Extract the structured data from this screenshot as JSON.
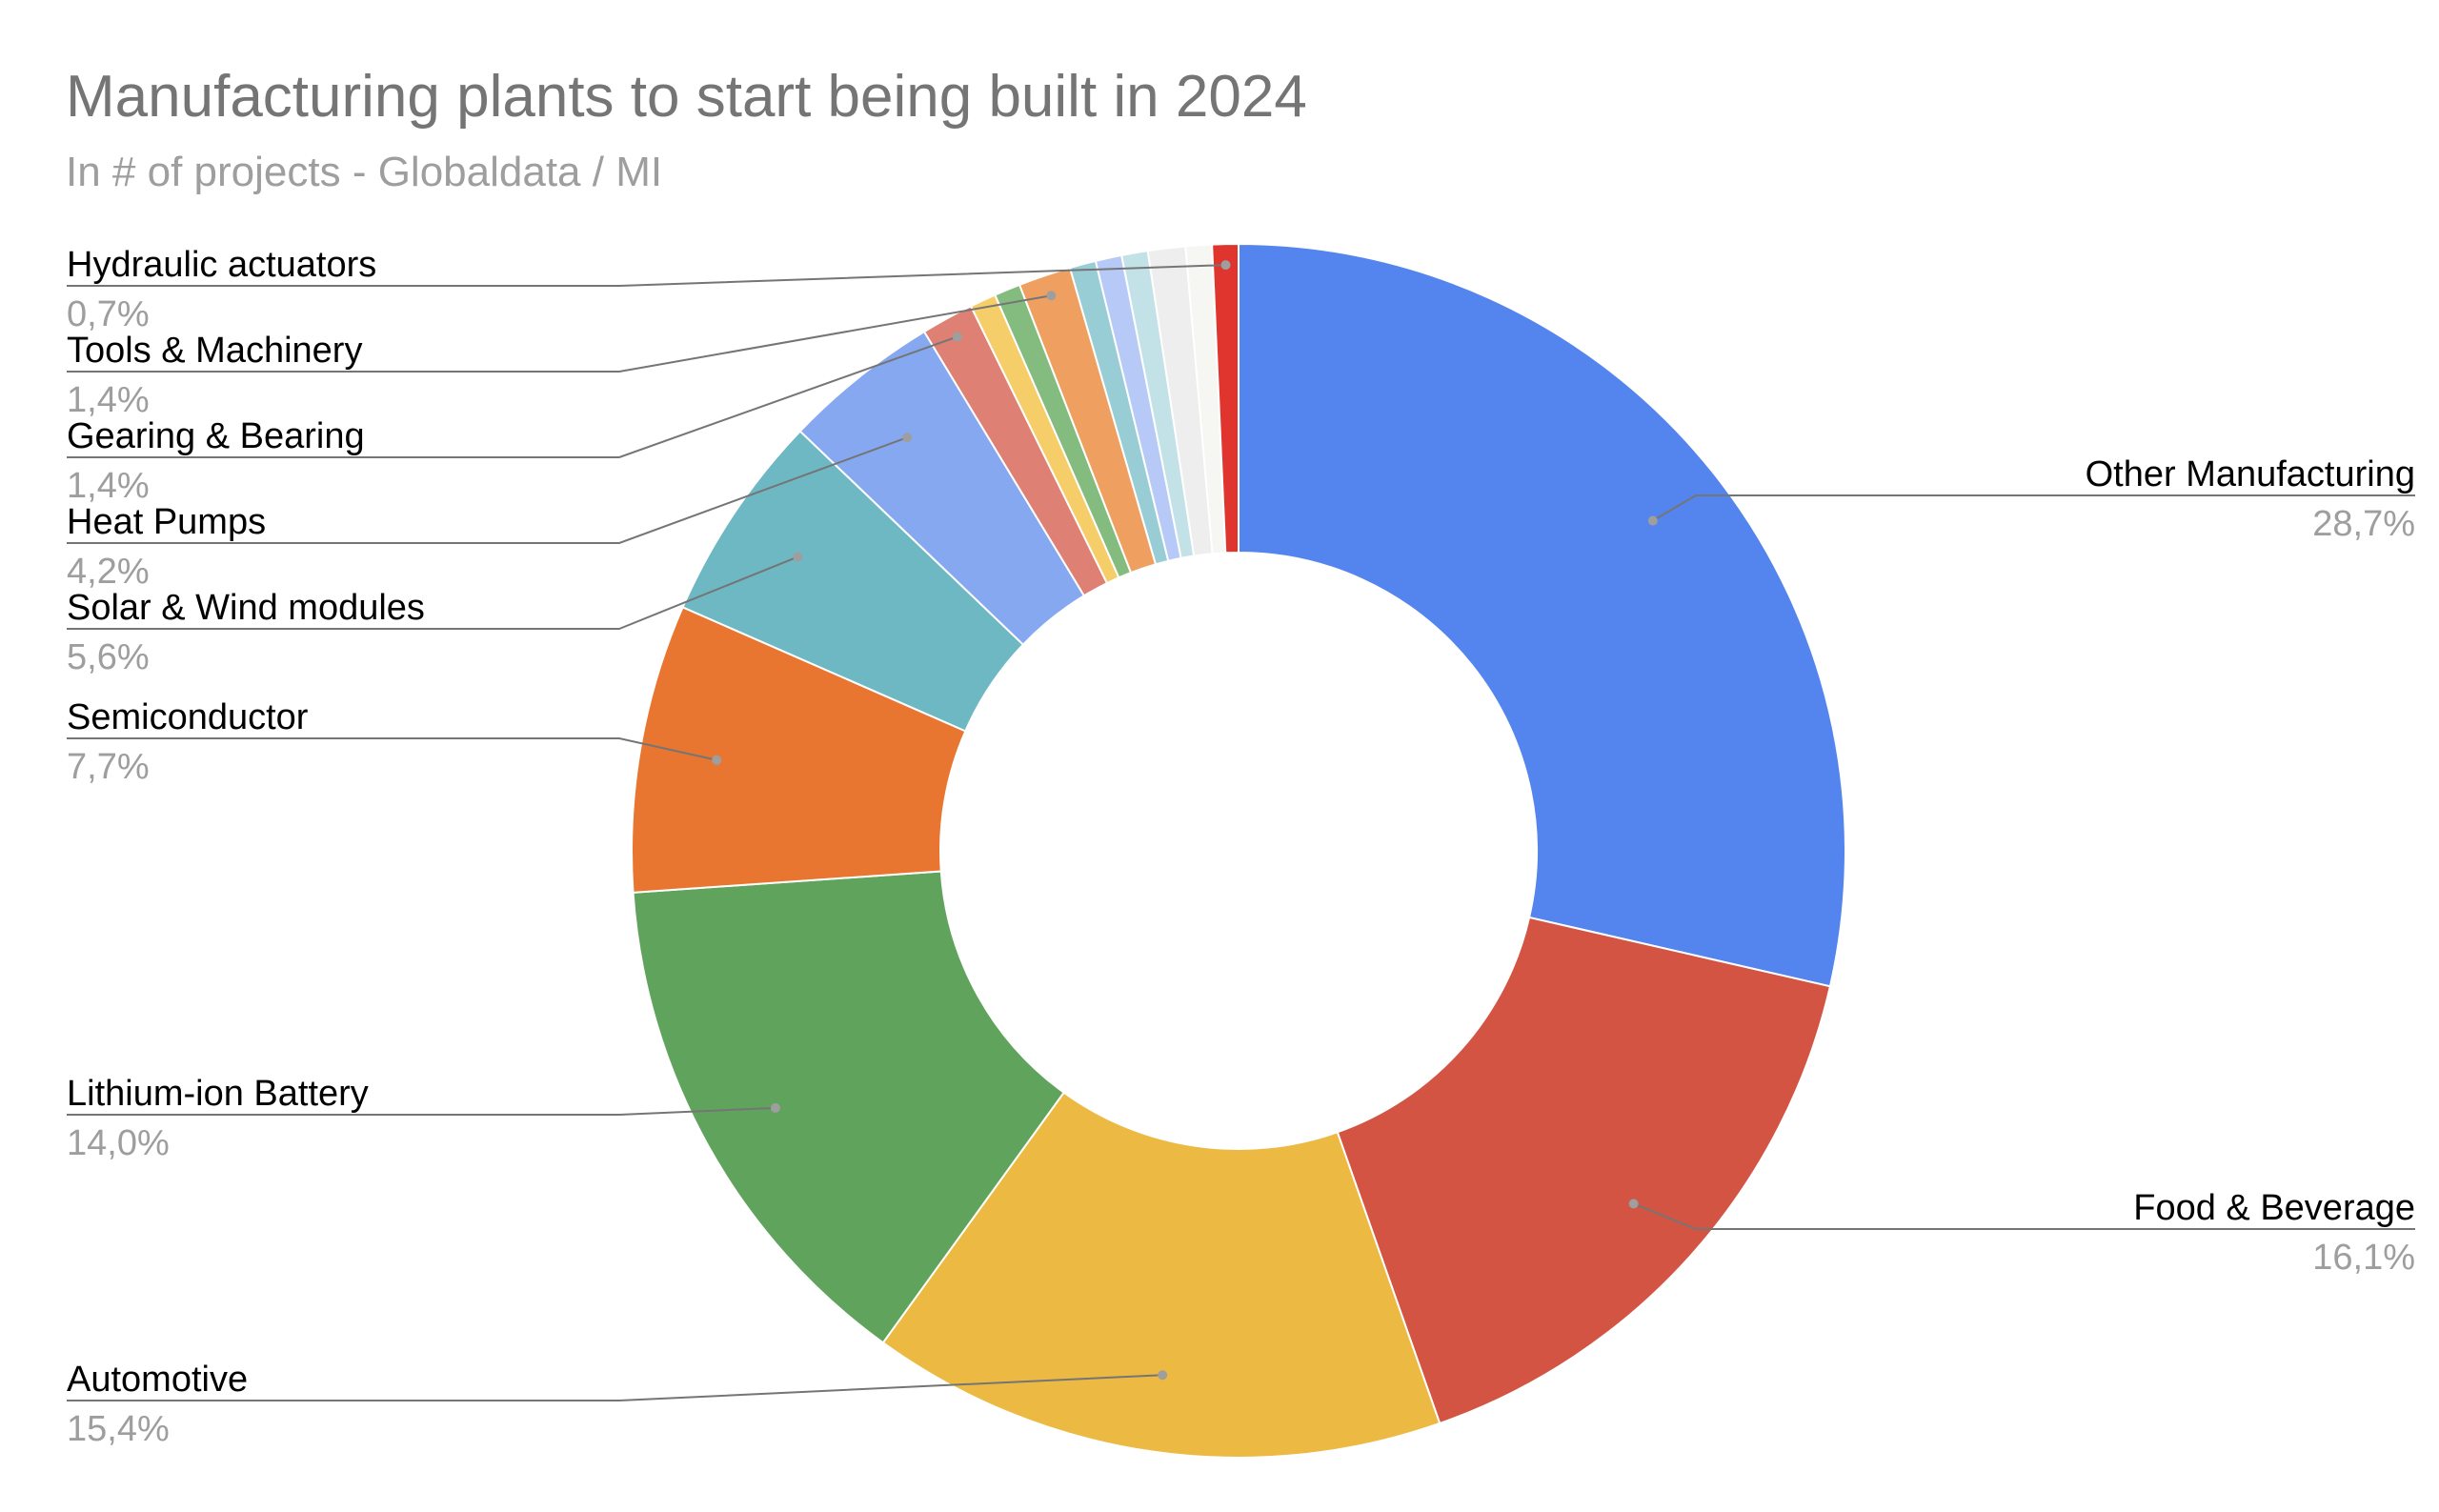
{
  "chart_data": {
    "type": "pie",
    "variant": "donut",
    "title": "Manufacturing plants to start being built in 2024",
    "subtitle": "In # of projects - Globaldata / MI",
    "slices": [
      {
        "label": "Other Manufacturing",
        "value": 28.7,
        "display": "28,7%",
        "color": "#5484ED",
        "labeled": true
      },
      {
        "label": "Food & Beverage",
        "value": 16.1,
        "display": "16,1%",
        "color": "#D35442",
        "labeled": true
      },
      {
        "label": "Automotive",
        "value": 15.4,
        "display": "15,4%",
        "color": "#ECBA42",
        "labeled": true
      },
      {
        "label": "Lithium-ion Battery",
        "value": 14.0,
        "display": "14,0%",
        "color": "#60A35C",
        "labeled": true
      },
      {
        "label": "Semiconductor",
        "value": 7.7,
        "display": "7,7%",
        "color": "#E87631",
        "labeled": true
      },
      {
        "label": "Solar & Wind modules",
        "value": 5.6,
        "display": "5,6%",
        "color": "#6EB8C4",
        "labeled": true
      },
      {
        "label": "Heat Pumps",
        "value": 4.2,
        "display": "4,2%",
        "color": "#86A8F0",
        "labeled": true
      },
      {
        "label": "Gearing & Bearing",
        "value": 1.4,
        "display": "1,4%",
        "color": "#DE8074",
        "labeled": true
      },
      {
        "label": "",
        "value": 0.7,
        "display": "",
        "color": "#F5CE6A",
        "labeled": false
      },
      {
        "label": "",
        "value": 0.7,
        "display": "",
        "color": "#84BC80",
        "labeled": false
      },
      {
        "label": "Tools & Machinery",
        "value": 1.4,
        "display": "1,4%",
        "color": "#EFA060",
        "labeled": true
      },
      {
        "label": "",
        "value": 0.7,
        "display": "",
        "color": "#98CDD6",
        "labeled": false
      },
      {
        "label": "",
        "value": 0.7,
        "display": "",
        "color": "#B7C9F6",
        "labeled": false
      },
      {
        "label": "",
        "value": 0.7,
        "display": "",
        "color": "#C3E2E8",
        "labeled": false
      },
      {
        "label": "",
        "value": 1.0,
        "display": "",
        "color": "#EEEEEE",
        "labeled": false
      },
      {
        "label": "",
        "value": 0.7,
        "display": "",
        "color": "#F6F6F2",
        "labeled": false
      },
      {
        "label": "Hydraulic actuators",
        "value": 0.7,
        "display": "0,7%",
        "color": "#E0352F",
        "labeled": true
      }
    ],
    "label_color": "#000000",
    "value_color": "#9e9e9e",
    "leader_line_color": "#757575"
  }
}
